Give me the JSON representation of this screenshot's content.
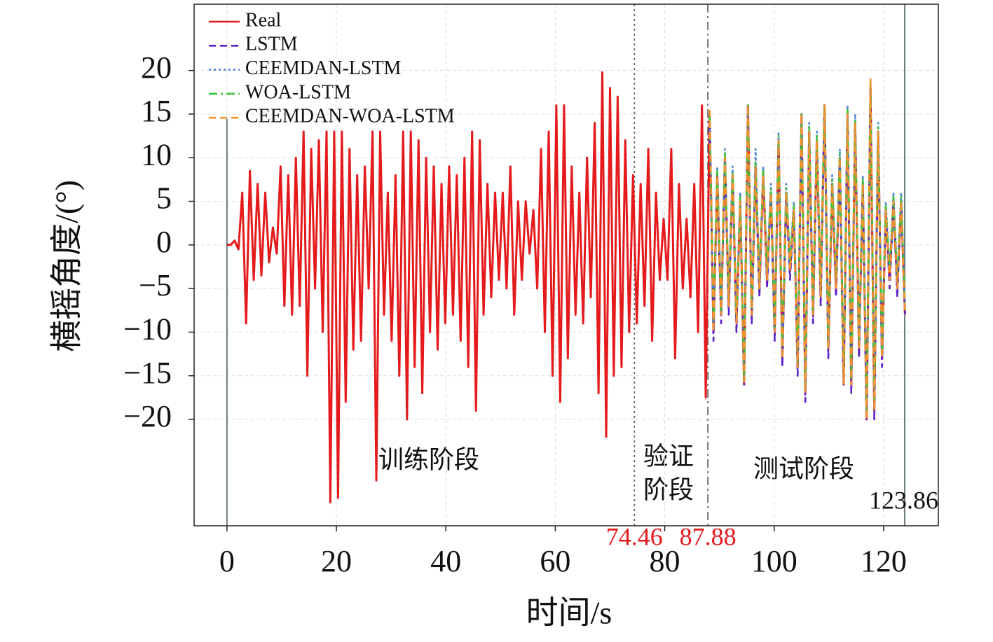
{
  "chart_data": {
    "type": "line",
    "xlabel": "时间/s",
    "ylabel": "横摇角度/(°)",
    "xlim": [
      -6,
      130
    ],
    "ylim": [
      -32.2,
      27.6
    ],
    "xticks": [
      0,
      20,
      40,
      60,
      80,
      100,
      120
    ],
    "yticks": [
      {
        "value": -20,
        "label": "−20"
      },
      {
        "value": -15,
        "label": "−15"
      },
      {
        "value": -10,
        "label": "−10"
      },
      {
        "value": -5,
        "label": "−5"
      },
      0,
      5,
      10,
      15,
      20
    ],
    "grid": true,
    "legend": "upper left",
    "phase_labels": {
      "train": "训练阶段",
      "validation": [
        "验证",
        "阶段"
      ],
      "test": "测试阶段"
    },
    "vlines": [
      {
        "x": 0,
        "style": "solid",
        "color": "#6c7a80"
      },
      {
        "x": 74.46,
        "style": "dotted",
        "color": "#666666",
        "label_color": "#e41a1c"
      },
      {
        "x": 87.88,
        "style": "dashdot",
        "color": "#666666",
        "label_color": "#e41a1c"
      },
      {
        "x": 123.86,
        "style": "solid",
        "color": "#6c7a80",
        "label_color": "#111111"
      }
    ],
    "series": [
      {
        "name": "Real",
        "color": "#e41a1c",
        "dash": "solid",
        "x": [
          0,
          0.7,
          1.4,
          2.1,
          2.8,
          3.5,
          4.2,
          4.9,
          5.6,
          6.3,
          7,
          7.7,
          8.4,
          9.1,
          9.8,
          10.5,
          11.2,
          11.9,
          12.6,
          13.3,
          14,
          14.7,
          15.4,
          16.1,
          16.8,
          17.5,
          18.2,
          18.9,
          19.6,
          20.3,
          21,
          21.7,
          22.4,
          23.1,
          23.8,
          24.5,
          25.2,
          25.9,
          26.6,
          27.3,
          28,
          28.7,
          29.4,
          30.1,
          30.8,
          31.5,
          32.2,
          32.9,
          33.6,
          34.3,
          35,
          35.7,
          36.4,
          37.1,
          37.8,
          38.5,
          39.2,
          39.9,
          40.6,
          41.3,
          42,
          42.7,
          43.4,
          44.1,
          44.8,
          45.5,
          46.2,
          46.9,
          47.6,
          48.3,
          49,
          49.7,
          50.4,
          51.1,
          51.8,
          52.5,
          53.2,
          53.9,
          54.6,
          55.3,
          56,
          56.7,
          57.4,
          58.1,
          58.8,
          59.5,
          60.2,
          60.9,
          61.6,
          62.3,
          63,
          63.7,
          64.4,
          65.1,
          65.8,
          66.5,
          67.2,
          67.9,
          68.6,
          69.3,
          70,
          70.7,
          71.4,
          72.1,
          72.8,
          73.5,
          74.2,
          74.9,
          75.6,
          76.3,
          77,
          77.7,
          78.4,
          79.1,
          79.8,
          80.5,
          81.2,
          81.9,
          82.6,
          83.3,
          84,
          84.7,
          85.4,
          86.1,
          86.8,
          87.5,
          88.2,
          88.9,
          89.6,
          90.3,
          91,
          91.7,
          92.4,
          93.1,
          93.8,
          94.5,
          95.2,
          95.9,
          96.6,
          97.3,
          98,
          98.7,
          99.4,
          100.1,
          100.8,
          101.5,
          102.2,
          102.9,
          103.6,
          104.3,
          105,
          105.7,
          106.4,
          107.1,
          107.8,
          108.5,
          109.2,
          109.9,
          110.6,
          111.3,
          112,
          112.7,
          113.4,
          114.1,
          114.8,
          115.5,
          116.2,
          116.9,
          117.6,
          118.3,
          119,
          119.7,
          120.4,
          121.1,
          121.8,
          122.5,
          123.2,
          123.9
        ],
        "values": [
          0,
          0,
          0.5,
          -0.5,
          6,
          -9,
          8.5,
          -4,
          7,
          -3.5,
          6,
          -2,
          2,
          -1,
          9,
          -7,
          8,
          -8,
          10,
          -7,
          13,
          -15,
          11,
          -5,
          12,
          -10,
          13,
          -29.5,
          13,
          -29,
          13,
          -18,
          11,
          -12,
          8,
          -11,
          9,
          -5,
          13,
          -27,
          13,
          -8,
          6,
          -11,
          8,
          -15,
          13,
          -20,
          13,
          -14,
          12,
          -17,
          10,
          -10,
          9,
          -12,
          7,
          -9,
          9,
          -8,
          8,
          -11,
          10,
          -14,
          13,
          -19,
          12,
          -8,
          7,
          -6,
          6,
          -4,
          6,
          -5,
          9,
          -8,
          5,
          -4,
          5,
          -1,
          4,
          -5,
          11,
          -10,
          13,
          -15,
          16,
          -18,
          16,
          -13,
          9,
          -8,
          6,
          -9,
          10,
          -6,
          14,
          -17,
          19.8,
          -22,
          18,
          -15,
          17,
          -14,
          12,
          -10,
          8,
          -9,
          7,
          -7,
          11,
          -11,
          6,
          -4,
          3,
          -4,
          11,
          -13,
          7,
          -5,
          3,
          -6,
          7,
          -10,
          16,
          -17.5,
          15,
          -10,
          8,
          -8,
          10,
          -7,
          8,
          -9,
          5,
          -16,
          16,
          -8,
          9,
          -5,
          8,
          -4,
          6,
          -10,
          12,
          -13,
          6,
          -3,
          4,
          -14,
          15,
          -17,
          13,
          -8,
          12,
          -6,
          16,
          -12,
          7,
          -5,
          10,
          -16,
          15,
          -16,
          14,
          -12,
          7,
          -20,
          18,
          -19,
          13,
          -13,
          4,
          -4,
          5,
          -5,
          5,
          -8
        ]
      },
      {
        "name": "LSTM",
        "color": "#5a1fc8",
        "dash": "dashed",
        "x": [
          88.2,
          88.9,
          89.6,
          90.3,
          91,
          91.7,
          92.4,
          93.1,
          93.8,
          94.5,
          95.2,
          95.9,
          96.6,
          97.3,
          98,
          98.7,
          99.4,
          100.1,
          100.8,
          101.5,
          102.2,
          102.9,
          103.6,
          104.3,
          105,
          105.7,
          106.4,
          107.1,
          107.8,
          108.5,
          109.2,
          109.9,
          110.6,
          111.3,
          112,
          112.7,
          113.4,
          114.1,
          114.8,
          115.5,
          116.2,
          116.9,
          117.6,
          118.3,
          119,
          119.7,
          120.4,
          121.1,
          121.8,
          122.5,
          123.2,
          123.9
        ],
        "values": [
          15,
          -11,
          8,
          -9,
          10,
          -8,
          8,
          -10,
          5,
          -16,
          16,
          -9,
          9,
          -6,
          8,
          -5,
          6,
          -11,
          12,
          -14,
          6,
          -4,
          4,
          -15,
          15,
          -18,
          13,
          -9,
          12,
          -7,
          16,
          -13,
          7,
          -6,
          10,
          -16,
          15,
          -17,
          14,
          -13,
          7,
          -20,
          18,
          -20,
          13,
          -14,
          4,
          -5,
          5,
          -6,
          5,
          -8
        ]
      },
      {
        "name": "CEEMDAN-LSTM",
        "color": "#4a7fd8",
        "dash": "dotted",
        "x": [
          88.2,
          88.9,
          89.6,
          90.3,
          91,
          91.7,
          92.4,
          93.1,
          93.8,
          94.5,
          95.2,
          95.9,
          96.6,
          97.3,
          98,
          98.7,
          99.4,
          100.1,
          100.8,
          101.5,
          102.2,
          102.9,
          103.6,
          104.3,
          105,
          105.7,
          106.4,
          107.1,
          107.8,
          108.5,
          109.2,
          109.9,
          110.6,
          111.3,
          112,
          112.7,
          113.4,
          114.1,
          114.8,
          115.5,
          116.2,
          116.9,
          117.6,
          118.3,
          119,
          119.7,
          120.4,
          121.1,
          121.8,
          122.5,
          123.2,
          123.9
        ],
        "values": [
          15,
          -9,
          9,
          -7,
          11,
          -6,
          9,
          -8,
          6,
          -15,
          16,
          -7,
          11,
          -4,
          9,
          -3,
          7,
          -9,
          13,
          -12,
          7,
          -2,
          5,
          -13,
          15,
          -16,
          14,
          -7,
          13,
          -5,
          16,
          -11,
          8,
          -4,
          11,
          -15,
          16,
          -15,
          15,
          -11,
          8,
          -19,
          19,
          -18,
          14,
          -12,
          5,
          -3,
          6,
          -4,
          6,
          -7
        ]
      },
      {
        "name": "WOA-LSTM",
        "color": "#3cc43c",
        "dash": "dashdot",
        "x": [
          88.2,
          88.9,
          89.6,
          90.3,
          91,
          91.7,
          92.4,
          93.1,
          93.8,
          94.5,
          95.2,
          95.9,
          96.6,
          97.3,
          98,
          98.7,
          99.4,
          100.1,
          100.8,
          101.5,
          102.2,
          102.9,
          103.6,
          104.3,
          105,
          105.7,
          106.4,
          107.1,
          107.8,
          108.5,
          109.2,
          109.9,
          110.6,
          111.3,
          112,
          112.7,
          113.4,
          114.1,
          114.8,
          115.5,
          116.2,
          116.9,
          117.6,
          118.3,
          119,
          119.7,
          120.4,
          121.1,
          121.8,
          122.5,
          123.2,
          123.9
        ],
        "values": [
          15,
          -9.5,
          8.5,
          -7.5,
          10.5,
          -6,
          8.5,
          -8.5,
          5.5,
          -15.5,
          16,
          -7.5,
          9.5,
          -4,
          8.5,
          -3,
          6.5,
          -9.5,
          12.5,
          -12.5,
          6.5,
          -2,
          4.5,
          -13.5,
          15,
          -16.5,
          13.5,
          -7.5,
          12.5,
          -5,
          16,
          -11.5,
          7.5,
          -4,
          10.5,
          -15.5,
          15.5,
          -15.5,
          14.5,
          -11.5,
          7.5,
          -19.5,
          18.5,
          -18.5,
          13.5,
          -12.5,
          4.5,
          -3,
          5.5,
          -4,
          5.5,
          -7.5
        ]
      },
      {
        "name": "CEEMDAN-WOA-LSTM",
        "color": "#f0922a",
        "dash": "dashed",
        "x": [
          88.2,
          88.9,
          89.6,
          90.3,
          91,
          91.7,
          92.4,
          93.1,
          93.8,
          94.5,
          95.2,
          95.9,
          96.6,
          97.3,
          98,
          98.7,
          99.4,
          100.1,
          100.8,
          101.5,
          102.2,
          102.9,
          103.6,
          104.3,
          105,
          105.7,
          106.4,
          107.1,
          107.8,
          108.5,
          109.2,
          109.9,
          110.6,
          111.3,
          112,
          112.7,
          113.4,
          114.1,
          114.8,
          115.5,
          116.2,
          116.9,
          117.6,
          118.3,
          119,
          119.7,
          120.4,
          121.1,
          121.8,
          122.5,
          123.2,
          123.9
        ],
        "values": [
          15.5,
          -10,
          8,
          -8,
          10,
          -7,
          8,
          -9,
          5,
          -16,
          16,
          -8,
          9,
          -5,
          8,
          -4,
          6,
          -10,
          12,
          -13,
          6,
          -3,
          4,
          -14,
          15,
          -17,
          13,
          -8,
          12,
          -6,
          16,
          -12,
          7,
          -5,
          10,
          -16,
          15,
          -16,
          14,
          -12,
          7,
          -20,
          19,
          -19,
          13,
          -13,
          4,
          -4,
          5,
          -5,
          5,
          -8
        ]
      }
    ]
  }
}
